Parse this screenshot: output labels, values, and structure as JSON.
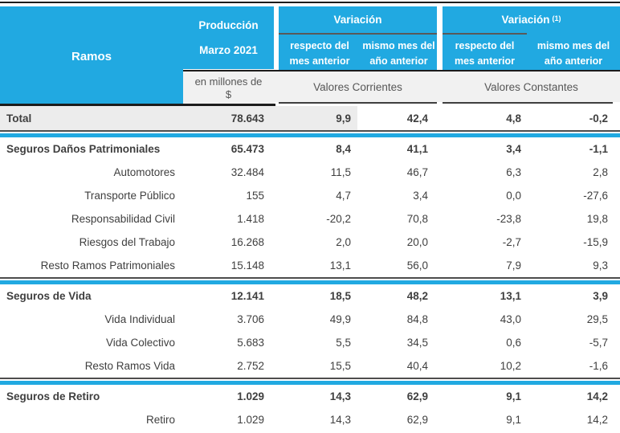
{
  "colors": {
    "cyan": "#21A9E1",
    "header_line": "#1C1C1C",
    "underline": "#595959",
    "subheader_bg": "#F1F1F1",
    "total_bg": "#ECECEC",
    "text": "#3F3F3F"
  },
  "header": {
    "ramos": "Ramos",
    "produccion": {
      "line1": "Producción",
      "line2": "Marzo 2021",
      "unit_line1": "en millones de",
      "unit_line2": "$"
    },
    "groups": [
      {
        "title": "Variación",
        "sup": "",
        "col1_line1": "respecto del",
        "col1_line2": "mes anterior",
        "col2_line1": "mismo mes del",
        "col2_line2": "año anterior",
        "values": "Valores Corrientes"
      },
      {
        "title": "Variación",
        "sup": "(1)",
        "col1_line1": "respecto del",
        "col1_line2": "mes anterior",
        "col2_line1": "mismo mes del",
        "col2_line2": "año anterior",
        "values": "Valores Constantes"
      }
    ]
  },
  "table": {
    "rows": [
      {
        "type": "total",
        "cells": [
          "Total",
          "78.643",
          "9,9",
          "42,4",
          "4,8",
          "-0,2"
        ]
      },
      {
        "type": "divider"
      },
      {
        "type": "section",
        "cells": [
          "Seguros Daños Patrimoniales",
          "65.473",
          "8,4",
          "41,1",
          "3,4",
          "-1,1"
        ]
      },
      {
        "type": "sub",
        "cells": [
          "Automotores",
          "32.484",
          "11,5",
          "46,7",
          "6,3",
          "2,8"
        ]
      },
      {
        "type": "sub",
        "cells": [
          "Transporte Público",
          "155",
          "4,7",
          "3,4",
          "0,0",
          "-27,6"
        ]
      },
      {
        "type": "sub",
        "cells": [
          "Responsabilidad Civil",
          "1.418",
          "-20,2",
          "70,8",
          "-23,8",
          "19,8"
        ]
      },
      {
        "type": "sub",
        "cells": [
          "Riesgos del Trabajo",
          "16.268",
          "2,0",
          "20,0",
          "-2,7",
          "-15,9"
        ]
      },
      {
        "type": "sub",
        "cells": [
          "Resto Ramos Patrimoniales",
          "15.148",
          "13,1",
          "56,0",
          "7,9",
          "9,3"
        ]
      },
      {
        "type": "divider"
      },
      {
        "type": "section",
        "cells": [
          "Seguros de Vida",
          "12.141",
          "18,5",
          "48,2",
          "13,1",
          "3,9"
        ]
      },
      {
        "type": "sub",
        "cells": [
          "Vida Individual",
          "3.706",
          "49,9",
          "84,8",
          "43,0",
          "29,5"
        ]
      },
      {
        "type": "sub",
        "cells": [
          "Vida Colectivo",
          "5.683",
          "5,5",
          "34,5",
          "0,6",
          "-5,7"
        ]
      },
      {
        "type": "sub",
        "cells": [
          "Resto Ramos Vida",
          "2.752",
          "15,5",
          "40,4",
          "10,2",
          "-1,6"
        ]
      },
      {
        "type": "divider"
      },
      {
        "type": "section",
        "cells": [
          "Seguros de Retiro",
          "1.029",
          "14,3",
          "62,9",
          "9,1",
          "14,2"
        ]
      },
      {
        "type": "sub",
        "cells": [
          "Retiro",
          "1.029",
          "14,3",
          "62,9",
          "9,1",
          "14,2"
        ]
      }
    ]
  },
  "chart_data": {
    "type": "table",
    "title": "Producción Marzo 2021 por Ramos",
    "columns": [
      "Ramos",
      "Producción Marzo 2021 (en millones de $)",
      "Variación respecto del mes anterior - Valores Corrientes (%)",
      "Variación mismo mes del año anterior - Valores Corrientes (%)",
      "Variación (1) respecto del mes anterior - Valores Constantes (%)",
      "Variación (1) mismo mes del año anterior - Valores Constantes (%)"
    ],
    "rows": [
      [
        "Total",
        78643,
        9.9,
        42.4,
        4.8,
        -0.2
      ],
      [
        "Seguros Daños Patrimoniales",
        65473,
        8.4,
        41.1,
        3.4,
        -1.1
      ],
      [
        "Automotores",
        32484,
        11.5,
        46.7,
        6.3,
        2.8
      ],
      [
        "Transporte Público",
        155,
        4.7,
        3.4,
        0.0,
        -27.6
      ],
      [
        "Responsabilidad Civil",
        1418,
        -20.2,
        70.8,
        -23.8,
        19.8
      ],
      [
        "Riesgos del Trabajo",
        16268,
        2.0,
        20.0,
        -2.7,
        -15.9
      ],
      [
        "Resto Ramos Patrimoniales",
        15148,
        13.1,
        56.0,
        7.9,
        9.3
      ],
      [
        "Seguros de Vida",
        12141,
        18.5,
        48.2,
        13.1,
        3.9
      ],
      [
        "Vida Individual",
        3706,
        49.9,
        84.8,
        43.0,
        29.5
      ],
      [
        "Vida Colectivo",
        5683,
        5.5,
        34.5,
        0.6,
        -5.7
      ],
      [
        "Resto Ramos Vida",
        2752,
        15.5,
        40.4,
        10.2,
        -1.6
      ],
      [
        "Seguros de Retiro",
        1029,
        14.3,
        62.9,
        9.1,
        14.2
      ],
      [
        "Retiro",
        1029,
        14.3,
        62.9,
        9.1,
        14.2
      ]
    ]
  }
}
